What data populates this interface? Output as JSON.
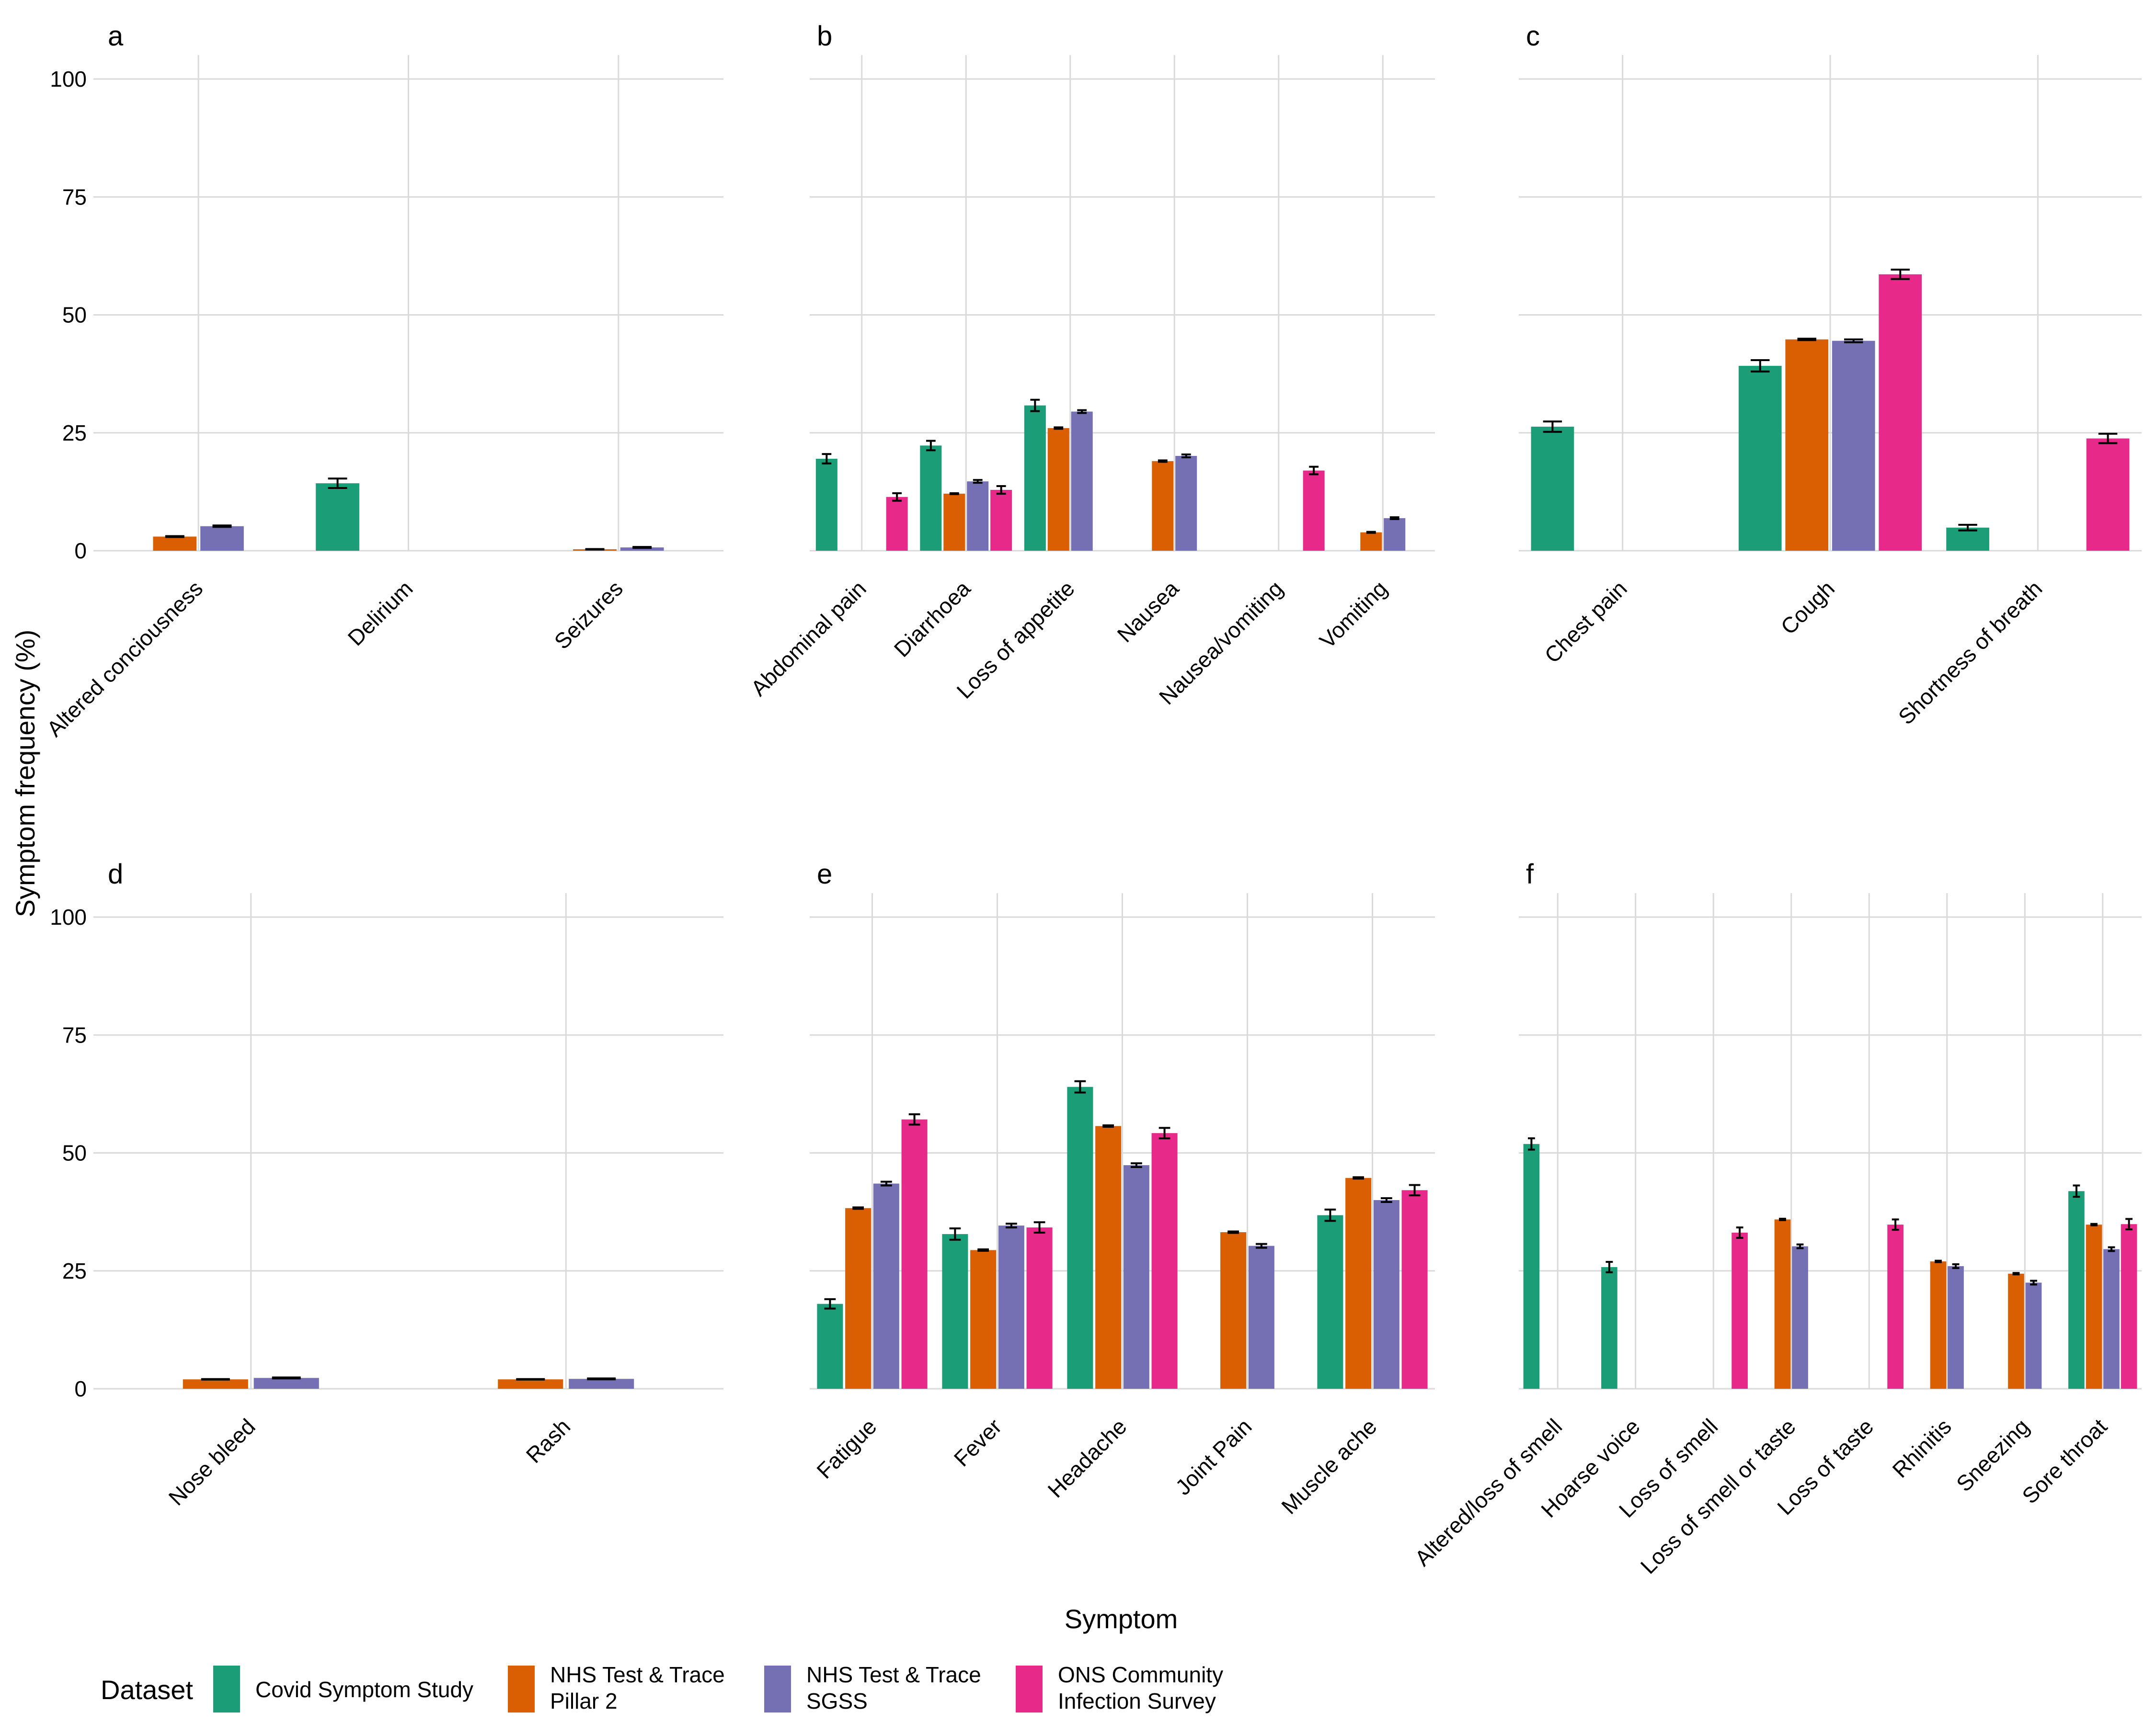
{
  "colors": {
    "covid_symptom_study": "#1b9e77",
    "pillar2": "#d95f02",
    "sgss": "#7570b3",
    "ons": "#e7298a",
    "grid": "#dadada",
    "errorbar": "#000000"
  },
  "axes": {
    "ylabel": "Symptom frequency (%)",
    "xlabel": "Symptom"
  },
  "legend": {
    "title": "Dataset",
    "entries": [
      {
        "key": "css",
        "lines": [
          "Covid Symptom Study"
        ],
        "color": "#1b9e77"
      },
      {
        "key": "p2",
        "lines": [
          "NHS Test & Trace",
          "Pillar 2"
        ],
        "color": "#d95f02"
      },
      {
        "key": "sgss",
        "lines": [
          "NHS Test & Trace",
          "SGSS"
        ],
        "color": "#7570b3"
      },
      {
        "key": "ons",
        "lines": [
          "ONS Community",
          "Infection Survey"
        ],
        "color": "#e7298a"
      }
    ]
  },
  "chart_data": [
    {
      "panel": "a",
      "type": "bar",
      "ylim": [
        0,
        100
      ],
      "yticks": [
        0,
        25,
        50,
        75,
        100
      ],
      "categories": [
        "Altered conciousness",
        "Delirium",
        "Seizures"
      ],
      "series": [
        {
          "name": "Covid Symptom Study",
          "values": [
            null,
            14.3,
            null
          ],
          "err": [
            null,
            1.0,
            null
          ]
        },
        {
          "name": "NHS Test & Trace Pillar 2",
          "values": [
            3.0,
            null,
            0.3
          ],
          "err": [
            0.1,
            null,
            0.05
          ]
        },
        {
          "name": "NHS Test & Trace SGSS",
          "values": [
            5.2,
            null,
            0.7
          ],
          "err": [
            0.15,
            null,
            0.1
          ]
        },
        {
          "name": "ONS Community Infection Survey",
          "values": [
            null,
            null,
            null
          ],
          "err": [
            null,
            null,
            null
          ]
        }
      ]
    },
    {
      "panel": "b",
      "type": "bar",
      "ylim": [
        0,
        100
      ],
      "yticks": [
        0,
        25,
        50,
        75,
        100
      ],
      "categories": [
        "Abdominal pain",
        "Diarrhoea",
        "Loss of appetite",
        "Nausea",
        "Nausea/vomiting",
        "Vomiting"
      ],
      "series": [
        {
          "name": "Covid Symptom Study",
          "values": [
            19.5,
            22.3,
            30.8,
            null,
            null,
            null
          ],
          "err": [
            1.0,
            1.0,
            1.2,
            null,
            null,
            null
          ]
        },
        {
          "name": "NHS Test & Trace Pillar 2",
          "values": [
            null,
            12.1,
            26.0,
            19.0,
            null,
            3.9
          ],
          "err": [
            null,
            0.1,
            0.15,
            0.15,
            null,
            0.1
          ]
        },
        {
          "name": "NHS Test & Trace SGSS",
          "values": [
            null,
            14.7,
            29.5,
            20.1,
            null,
            6.9
          ],
          "err": [
            null,
            0.3,
            0.3,
            0.3,
            null,
            0.2
          ]
        },
        {
          "name": "ONS Community Infection Survey",
          "values": [
            11.4,
            12.9,
            null,
            null,
            17.0,
            null
          ],
          "err": [
            0.8,
            0.8,
            null,
            null,
            0.8,
            null
          ]
        }
      ]
    },
    {
      "panel": "c",
      "type": "bar",
      "ylim": [
        0,
        100
      ],
      "yticks": [
        0,
        25,
        50,
        75,
        100
      ],
      "categories": [
        "Chest pain",
        "Cough",
        "Shortness of breath"
      ],
      "series": [
        {
          "name": "Covid Symptom Study",
          "values": [
            26.3,
            39.2,
            4.9
          ],
          "err": [
            1.1,
            1.2,
            0.6
          ]
        },
        {
          "name": "NHS Test & Trace Pillar 2",
          "values": [
            null,
            44.8,
            null
          ],
          "err": [
            null,
            0.15,
            null
          ]
        },
        {
          "name": "NHS Test & Trace SGSS",
          "values": [
            null,
            44.5,
            null
          ],
          "err": [
            null,
            0.3,
            null
          ]
        },
        {
          "name": "ONS Community Infection Survey",
          "values": [
            null,
            58.6,
            23.8
          ],
          "err": [
            null,
            1.0,
            1.0
          ]
        }
      ]
    },
    {
      "panel": "d",
      "type": "bar",
      "ylim": [
        0,
        100
      ],
      "yticks": [
        0,
        25,
        50,
        75,
        100
      ],
      "categories": [
        "Nose bleed",
        "Rash"
      ],
      "series": [
        {
          "name": "Covid Symptom Study",
          "values": [
            null,
            null
          ],
          "err": [
            null,
            null
          ]
        },
        {
          "name": "NHS Test & Trace Pillar 2",
          "values": [
            2.0,
            2.0
          ],
          "err": [
            0.05,
            0.05
          ]
        },
        {
          "name": "NHS Test & Trace SGSS",
          "values": [
            2.3,
            2.1
          ],
          "err": [
            0.1,
            0.1
          ]
        },
        {
          "name": "ONS Community Infection Survey",
          "values": [
            null,
            null
          ],
          "err": [
            null,
            null
          ]
        }
      ]
    },
    {
      "panel": "e",
      "type": "bar",
      "ylim": [
        0,
        100
      ],
      "yticks": [
        0,
        25,
        50,
        75,
        100
      ],
      "categories": [
        "Fatigue",
        "Fever",
        "Headache",
        "Joint Pain",
        "Muscle ache"
      ],
      "series": [
        {
          "name": "Covid Symptom Study",
          "values": [
            18.0,
            32.8,
            64.0,
            null,
            36.8
          ],
          "err": [
            1.0,
            1.2,
            1.2,
            null,
            1.2
          ]
        },
        {
          "name": "NHS Test & Trace Pillar 2",
          "values": [
            38.3,
            29.4,
            55.7,
            33.2,
            44.7
          ],
          "err": [
            0.15,
            0.15,
            0.15,
            0.15,
            0.15
          ]
        },
        {
          "name": "NHS Test & Trace SGSS",
          "values": [
            43.5,
            34.6,
            47.4,
            30.3,
            40.0
          ],
          "err": [
            0.4,
            0.4,
            0.4,
            0.4,
            0.4
          ]
        },
        {
          "name": "ONS Community Infection Survey",
          "values": [
            57.1,
            34.2,
            54.2,
            null,
            42.1
          ],
          "err": [
            1.1,
            1.1,
            1.1,
            null,
            1.1
          ]
        }
      ]
    },
    {
      "panel": "f",
      "type": "bar",
      "ylim": [
        0,
        100
      ],
      "yticks": [
        0,
        25,
        50,
        75,
        100
      ],
      "categories": [
        "Altered/loss of smell",
        "Hoarse voice",
        "Loss of smell",
        "Loss of smell or taste",
        "Loss of taste",
        "Rhinitis",
        "Sneezing",
        "Sore throat"
      ],
      "series": [
        {
          "name": "Covid Symptom Study",
          "values": [
            51.9,
            25.8,
            null,
            null,
            null,
            null,
            null,
            41.9
          ],
          "err": [
            1.2,
            1.1,
            null,
            null,
            null,
            null,
            null,
            1.2
          ]
        },
        {
          "name": "NHS Test & Trace Pillar 2",
          "values": [
            null,
            null,
            null,
            35.9,
            null,
            27.0,
            24.4,
            34.8
          ],
          "err": [
            null,
            null,
            null,
            0.15,
            null,
            0.15,
            0.15,
            0.15
          ]
        },
        {
          "name": "NHS Test & Trace SGSS",
          "values": [
            null,
            null,
            null,
            30.2,
            null,
            26.0,
            22.5,
            29.6
          ],
          "err": [
            null,
            null,
            null,
            0.4,
            null,
            0.4,
            0.4,
            0.4
          ]
        },
        {
          "name": "ONS Community Infection Survey",
          "values": [
            null,
            null,
            33.1,
            null,
            34.8,
            null,
            null,
            34.9
          ],
          "err": [
            null,
            null,
            1.1,
            null,
            1.1,
            null,
            null,
            1.1
          ]
        }
      ]
    }
  ]
}
